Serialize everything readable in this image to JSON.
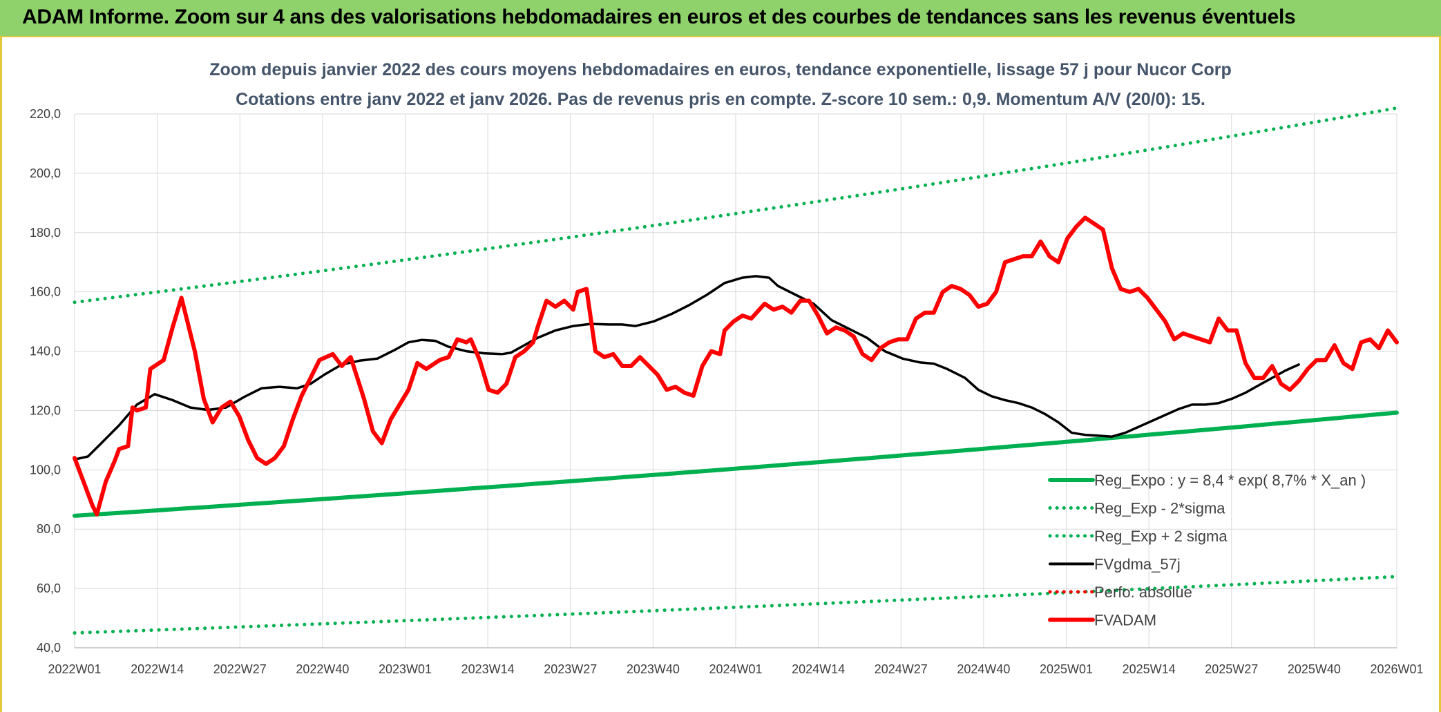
{
  "header": {
    "title": "ADAM Informe. Zoom sur 4 ans des valorisations hebdomadaires en euros et des courbes de tendances sans les revenus éventuels"
  },
  "colors": {
    "banner": "#8fd16b",
    "green": "#00b050",
    "red": "#ff0000",
    "black": "#000000",
    "grid": "#d9d9d9",
    "text": "#404040",
    "subtitle": "#44546a"
  },
  "chart_data": {
    "type": "line",
    "title": "Zoom depuis janvier 2022 des cours moyens hebdomadaires en euros, tendance exponentielle, lissage 57 j pour Nucor Corp",
    "subtitle": "Cotations entre janv 2022 et janv 2026. Pas de revenus pris en compte. Z-score 10 sem.: 0,9. Momentum A/V (20/0): 15.",
    "ylim": [
      40,
      220
    ],
    "yticks": [
      "40,0",
      "60,0",
      "80,0",
      "100,0",
      "120,0",
      "140,0",
      "160,0",
      "180,0",
      "200,0",
      "220,0"
    ],
    "yvalues": [
      40,
      60,
      80,
      100,
      120,
      140,
      160,
      180,
      200,
      220
    ],
    "xticks": [
      "2022W01",
      "2022W14",
      "2022W27",
      "2022W40",
      "2023W01",
      "2023W14",
      "2023W27",
      "2023W40",
      "2024W01",
      "2024W14",
      "2024W27",
      "2024W40",
      "2025W01",
      "2025W14",
      "2025W27",
      "2025W40",
      "2026W01"
    ],
    "grid": true,
    "legend_position": "bottom-right",
    "legend": [
      {
        "label": "Reg_Expo : y = 8,4 * exp( 8,7% *  X_an )",
        "color": "#00b050",
        "style": "solid"
      },
      {
        "label": "Reg_Exp - 2*sigma",
        "color": "#00b050",
        "style": "dotted"
      },
      {
        "label": "Reg_Exp + 2 sigma",
        "color": "#00b050",
        "style": "dotted"
      },
      {
        "label": "FVgdma_57j",
        "color": "#000000",
        "style": "solid"
      },
      {
        "label": "Perfo. absolue",
        "color": "#ff0000",
        "style": "dotted"
      },
      {
        "label": "FVADAM",
        "color": "#ff0000",
        "style": "solid"
      }
    ],
    "series": [
      {
        "name": "Reg_Expo : y = 8,4 * exp( 8,7% *  X_an )",
        "color": "#00b050",
        "style": "solid",
        "start": 84.5,
        "end": 119.3
      },
      {
        "name": "Reg_Exp - 2*sigma",
        "color": "#00b050",
        "style": "dotted",
        "start": 45.0,
        "end": 64.0
      },
      {
        "name": "Reg_Exp + 2 sigma",
        "color": "#00b050",
        "style": "dotted",
        "start": 156.5,
        "end": 222.0
      },
      {
        "name": "FVgdma_57j",
        "color": "#000000",
        "style": "solid",
        "points": [
          [
            0,
            103.5
          ],
          [
            3,
            104.5
          ],
          [
            6,
            109
          ],
          [
            10,
            115
          ],
          [
            14,
            122
          ],
          [
            18,
            125.5
          ],
          [
            22,
            123.5
          ],
          [
            26,
            121
          ],
          [
            30,
            120.2
          ],
          [
            34,
            121
          ],
          [
            38,
            124.5
          ],
          [
            42,
            127.5
          ],
          [
            46,
            128
          ],
          [
            50,
            127.5
          ],
          [
            53,
            129
          ],
          [
            56,
            132
          ],
          [
            60,
            135.5
          ],
          [
            64,
            136.8
          ],
          [
            68,
            137.5
          ],
          [
            72,
            140.5
          ],
          [
            75,
            143
          ],
          [
            78,
            143.8
          ],
          [
            81,
            143.5
          ],
          [
            84,
            141.5
          ],
          [
            88,
            140
          ],
          [
            92,
            139.3
          ],
          [
            96,
            139
          ],
          [
            98,
            139.5
          ],
          [
            101,
            142
          ],
          [
            104,
            144.5
          ],
          [
            108,
            147
          ],
          [
            112,
            148.5
          ],
          [
            116,
            149.2
          ],
          [
            120,
            149
          ],
          [
            123,
            149
          ],
          [
            126,
            148.5
          ],
          [
            130,
            150
          ],
          [
            134,
            152.5
          ],
          [
            138,
            155.5
          ],
          [
            142,
            159
          ],
          [
            146,
            163
          ],
          [
            150,
            164.8
          ],
          [
            153,
            165.3
          ],
          [
            156,
            164.8
          ],
          [
            158,
            162
          ],
          [
            162,
            159
          ],
          [
            166,
            156
          ],
          [
            170,
            150.5
          ],
          [
            174,
            147.5
          ],
          [
            178,
            144.5
          ],
          [
            182,
            140
          ],
          [
            186,
            137.5
          ],
          [
            190,
            136.2
          ],
          [
            193,
            135.8
          ],
          [
            196,
            134
          ],
          [
            200,
            131
          ],
          [
            203,
            127
          ],
          [
            206,
            124.8
          ],
          [
            209,
            123.5
          ],
          [
            212,
            122.5
          ],
          [
            215,
            121
          ],
          [
            218,
            118.8
          ],
          [
            221,
            116
          ],
          [
            224,
            112.5
          ],
          [
            227,
            111.8
          ],
          [
            230,
            111.5
          ],
          [
            233,
            111.2
          ],
          [
            236,
            112.5
          ],
          [
            239,
            114.5
          ],
          [
            242,
            116.5
          ],
          [
            245,
            118.5
          ],
          [
            248,
            120.5
          ],
          [
            251,
            122
          ],
          [
            254,
            122
          ],
          [
            257,
            122.5
          ],
          [
            260,
            124
          ],
          [
            263,
            126
          ],
          [
            266,
            128.5
          ],
          [
            269,
            131
          ],
          [
            272,
            133.5
          ],
          [
            275,
            135.5
          ]
        ]
      },
      {
        "name": "Perfo. absolue",
        "color": "#ff0000",
        "style": "dotted",
        "points": []
      },
      {
        "name": "FVADAM",
        "color": "#ff0000",
        "style": "solid",
        "points": [
          [
            0,
            104
          ],
          [
            2,
            96
          ],
          [
            4,
            88
          ],
          [
            5,
            85
          ],
          [
            7,
            96
          ],
          [
            9,
            103
          ],
          [
            10,
            107
          ],
          [
            12,
            108
          ],
          [
            13,
            121
          ],
          [
            14,
            120
          ],
          [
            16,
            121
          ],
          [
            17,
            134
          ],
          [
            19,
            136
          ],
          [
            20,
            137
          ],
          [
            22,
            148
          ],
          [
            24,
            158
          ],
          [
            27,
            140
          ],
          [
            29,
            124
          ],
          [
            31,
            116
          ],
          [
            33,
            121
          ],
          [
            35,
            123
          ],
          [
            37,
            118
          ],
          [
            39,
            110
          ],
          [
            41,
            104
          ],
          [
            43,
            102
          ],
          [
            45,
            104
          ],
          [
            47,
            108
          ],
          [
            49,
            117
          ],
          [
            51,
            125
          ],
          [
            53,
            131
          ],
          [
            55,
            137
          ],
          [
            58,
            139
          ],
          [
            60,
            135
          ],
          [
            62,
            138
          ],
          [
            65,
            124
          ],
          [
            67,
            113
          ],
          [
            69,
            109
          ],
          [
            71,
            117
          ],
          [
            73,
            122
          ],
          [
            75,
            127
          ],
          [
            77,
            136
          ],
          [
            79,
            134
          ],
          [
            82,
            137
          ],
          [
            84,
            138
          ],
          [
            86,
            144
          ],
          [
            88,
            143
          ],
          [
            89,
            144
          ],
          [
            91,
            137
          ],
          [
            93,
            127
          ],
          [
            95,
            126
          ],
          [
            97,
            129
          ],
          [
            99,
            138
          ],
          [
            101,
            140
          ],
          [
            103,
            143
          ],
          [
            104,
            148
          ],
          [
            106,
            157
          ],
          [
            108,
            155
          ],
          [
            110,
            157
          ],
          [
            112,
            154
          ],
          [
            113,
            160
          ],
          [
            115,
            161
          ],
          [
            117,
            140
          ],
          [
            119,
            138
          ],
          [
            121,
            139
          ],
          [
            123,
            135
          ],
          [
            125,
            135
          ],
          [
            127,
            138
          ],
          [
            129,
            135
          ],
          [
            131,
            132
          ],
          [
            133,
            127
          ],
          [
            135,
            128
          ],
          [
            137,
            126
          ],
          [
            139,
            125
          ],
          [
            141,
            135
          ],
          [
            143,
            140
          ],
          [
            145,
            139
          ],
          [
            146,
            147
          ],
          [
            148,
            150
          ],
          [
            150,
            152
          ],
          [
            152,
            151
          ],
          [
            155,
            156
          ],
          [
            157,
            154
          ],
          [
            159,
            155
          ],
          [
            161,
            153
          ],
          [
            163,
            157
          ],
          [
            165,
            157
          ],
          [
            167,
            152
          ],
          [
            169,
            146
          ],
          [
            171,
            148
          ],
          [
            173,
            147
          ],
          [
            175,
            145
          ],
          [
            177,
            139
          ],
          [
            179,
            137
          ],
          [
            181,
            141
          ],
          [
            183,
            143
          ],
          [
            185,
            144
          ],
          [
            187,
            144
          ],
          [
            189,
            151
          ],
          [
            191,
            153
          ],
          [
            193,
            153
          ],
          [
            195,
            160
          ],
          [
            197,
            162
          ],
          [
            199,
            161
          ],
          [
            201,
            159
          ],
          [
            203,
            155
          ],
          [
            205,
            156
          ],
          [
            207,
            160
          ],
          [
            209,
            170
          ],
          [
            211,
            171
          ],
          [
            213,
            172
          ],
          [
            215,
            172
          ],
          [
            217,
            177
          ],
          [
            219,
            172
          ],
          [
            221,
            170
          ],
          [
            223,
            178
          ],
          [
            225,
            182
          ],
          [
            227,
            185
          ],
          [
            229,
            183
          ],
          [
            231,
            181
          ],
          [
            233,
            168
          ],
          [
            235,
            161
          ],
          [
            237,
            160
          ],
          [
            239,
            161
          ],
          [
            241,
            158
          ],
          [
            243,
            154
          ],
          [
            245,
            150
          ],
          [
            247,
            144
          ],
          [
            249,
            146
          ],
          [
            251,
            145
          ],
          [
            253,
            144
          ],
          [
            255,
            143
          ],
          [
            257,
            151
          ],
          [
            259,
            147
          ],
          [
            261,
            147
          ],
          [
            263,
            136
          ],
          [
            265,
            131
          ],
          [
            267,
            131
          ],
          [
            269,
            135
          ],
          [
            271,
            129
          ],
          [
            273,
            127
          ],
          [
            275,
            130
          ],
          [
            277,
            134
          ],
          [
            279,
            137
          ],
          [
            281,
            137
          ],
          [
            283,
            142
          ],
          [
            285,
            136
          ],
          [
            287,
            134
          ],
          [
            289,
            143
          ],
          [
            291,
            144
          ],
          [
            293,
            141
          ],
          [
            295,
            147
          ],
          [
            297,
            143
          ]
        ]
      }
    ]
  }
}
